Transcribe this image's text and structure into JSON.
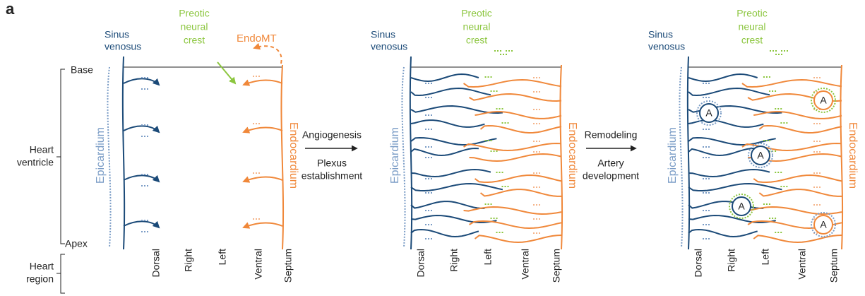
{
  "panel_label": "a",
  "axis": {
    "base": "Base",
    "apex": "Apex",
    "ventricle": [
      "Heart",
      "ventricle"
    ],
    "region": [
      "Heart",
      "region"
    ]
  },
  "panels": [
    {
      "sinus": [
        "Sinus",
        "venosus"
      ],
      "neural_crest": [
        "Preotic",
        "neural",
        "crest"
      ],
      "endomt": "EndoMT",
      "epicardium": "Epicardium",
      "endocardium": "Endocardium",
      "regions": [
        "Dorsal",
        "Right",
        "Left",
        "Ventral",
        "Septum"
      ]
    },
    {
      "sinus": [
        "Sinus",
        "venosus"
      ],
      "neural_crest": [
        "Preotic",
        "neural",
        "crest"
      ],
      "epicardium": "Epicardium",
      "endocardium": "Endocardium",
      "regions": [
        "Dorsal",
        "Right",
        "Left",
        "Ventral",
        "Septum"
      ]
    },
    {
      "sinus": [
        "Sinus",
        "venosus"
      ],
      "neural_crest": [
        "Preotic",
        "neural",
        "crest"
      ],
      "epicardium": "Epicardium",
      "endocardium": "Endocardium",
      "regions": [
        "Dorsal",
        "Right",
        "Left",
        "Ventral",
        "Septum"
      ],
      "artery_labels": [
        "A",
        "A",
        "A",
        "A",
        "A"
      ]
    }
  ],
  "transitions": [
    {
      "process": "Angiogenesis",
      "outcome": [
        "Plexus",
        "establishment"
      ]
    },
    {
      "process": "Remodeling",
      "outcome": [
        "Artery",
        "development"
      ]
    }
  ]
}
